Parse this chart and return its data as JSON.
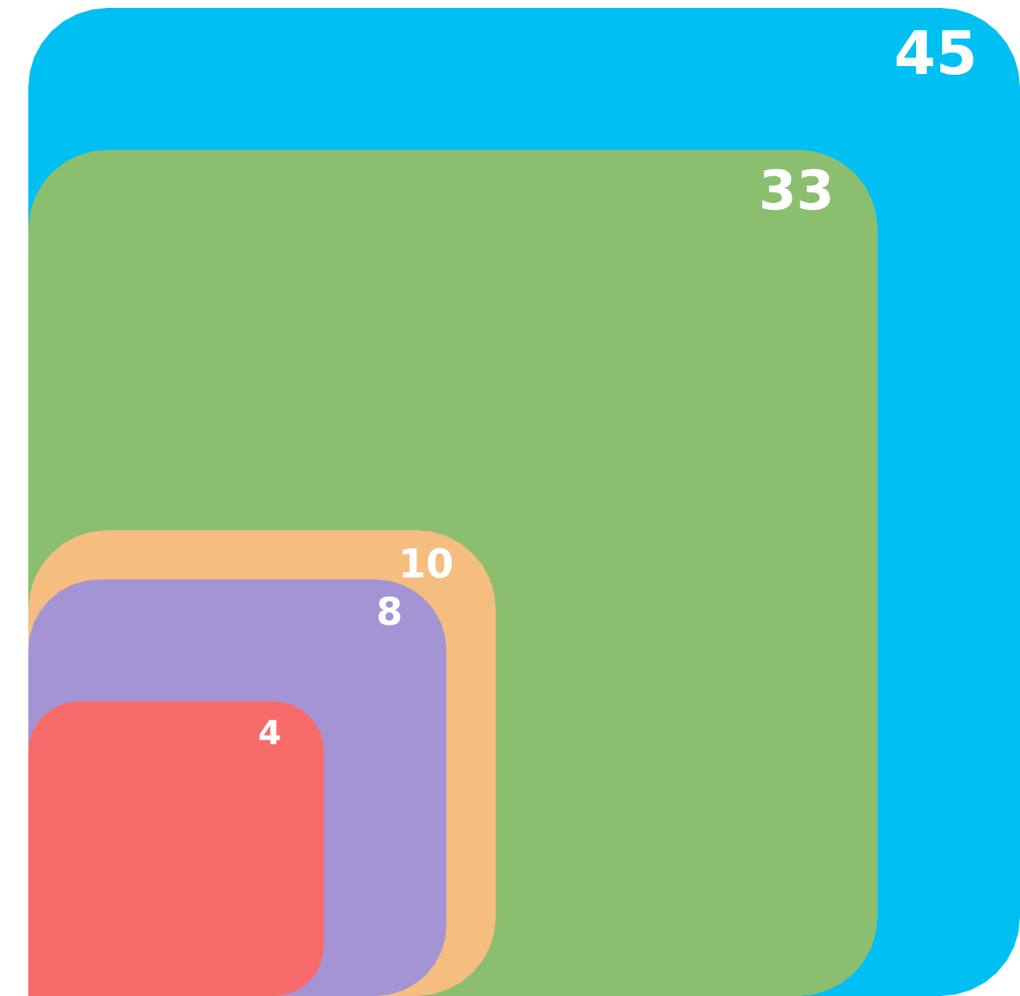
{
  "chart_data": {
    "type": "other",
    "values": [
      45,
      33,
      10,
      8,
      4
    ],
    "colors": [
      "#00bff3",
      "#8bbf6f",
      "#f5bd80",
      "#a594d4",
      "#f76b6b"
    ],
    "data_labels": true
  }
}
